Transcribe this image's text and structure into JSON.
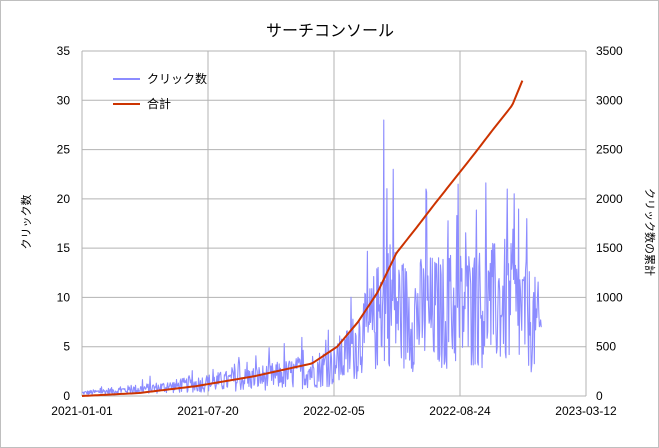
{
  "chart_data": {
    "type": "line",
    "title": "サーチコンソール",
    "xlabel": "",
    "ylabel": "クリック数",
    "y2label": "クリック数の累計",
    "x_ticks": [
      "2021-01-01",
      "2021-07-20",
      "2022-02-05",
      "2022-08-24",
      "2023-03-12"
    ],
    "xlim": [
      "2021-01-01",
      "2023-03-12"
    ],
    "ylim": [
      0,
      35
    ],
    "y_ticks": [
      0,
      5,
      10,
      15,
      20,
      25,
      30,
      35
    ],
    "y2lim": [
      0,
      3500
    ],
    "y2_ticks": [
      0,
      500,
      1000,
      1500,
      2000,
      2500,
      3000,
      3500
    ],
    "grid": true,
    "legend_position": "top-left",
    "series": [
      {
        "name": "クリック数",
        "axis": "left",
        "color": "#8c8cff",
        "style": "noisy daily line",
        "x": [
          "2021-01-01",
          "2021-02-15",
          "2021-04-01",
          "2021-05-15",
          "2021-07-01",
          "2021-08-15",
          "2021-10-01",
          "2021-11-15",
          "2022-01-01",
          "2022-02-15",
          "2022-03-15",
          "2022-04-01",
          "2022-04-20",
          "2022-05-01",
          "2022-05-15",
          "2022-06-01",
          "2022-07-01",
          "2022-08-01",
          "2022-09-01",
          "2022-10-01",
          "2022-11-01",
          "2022-12-01",
          "2022-12-31"
        ],
        "values": [
          0.3,
          0.5,
          0.7,
          0.9,
          1.2,
          1.5,
          1.8,
          2.1,
          2.6,
          3.3,
          5.5,
          6.5,
          8.5,
          10,
          9,
          8,
          8.5,
          8.5,
          9,
          9,
          9.5,
          8.5,
          6.5
        ],
        "peaks": [
          {
            "x": "2022-04-25",
            "y": 28
          },
          {
            "x": "2022-05-10",
            "y": 23
          },
          {
            "x": "2022-07-01",
            "y": 21
          },
          {
            "x": "2022-11-07",
            "y": 21
          }
        ]
      },
      {
        "name": "合計",
        "axis": "right",
        "color": "#cc3300",
        "x": [
          "2021-01-01",
          "2021-04-01",
          "2021-07-01",
          "2021-10-01",
          "2022-01-01",
          "2022-02-10",
          "2022-03-15",
          "2022-04-15",
          "2022-05-15",
          "2022-06-15",
          "2022-07-15",
          "2022-08-15",
          "2022-09-15",
          "2022-10-15",
          "2022-11-15",
          "2022-12-01"
        ],
        "values": [
          0,
          30,
          100,
          200,
          330,
          500,
          750,
          1050,
          1450,
          1700,
          1950,
          2200,
          2450,
          2700,
          2950,
          3200
        ]
      }
    ]
  }
}
